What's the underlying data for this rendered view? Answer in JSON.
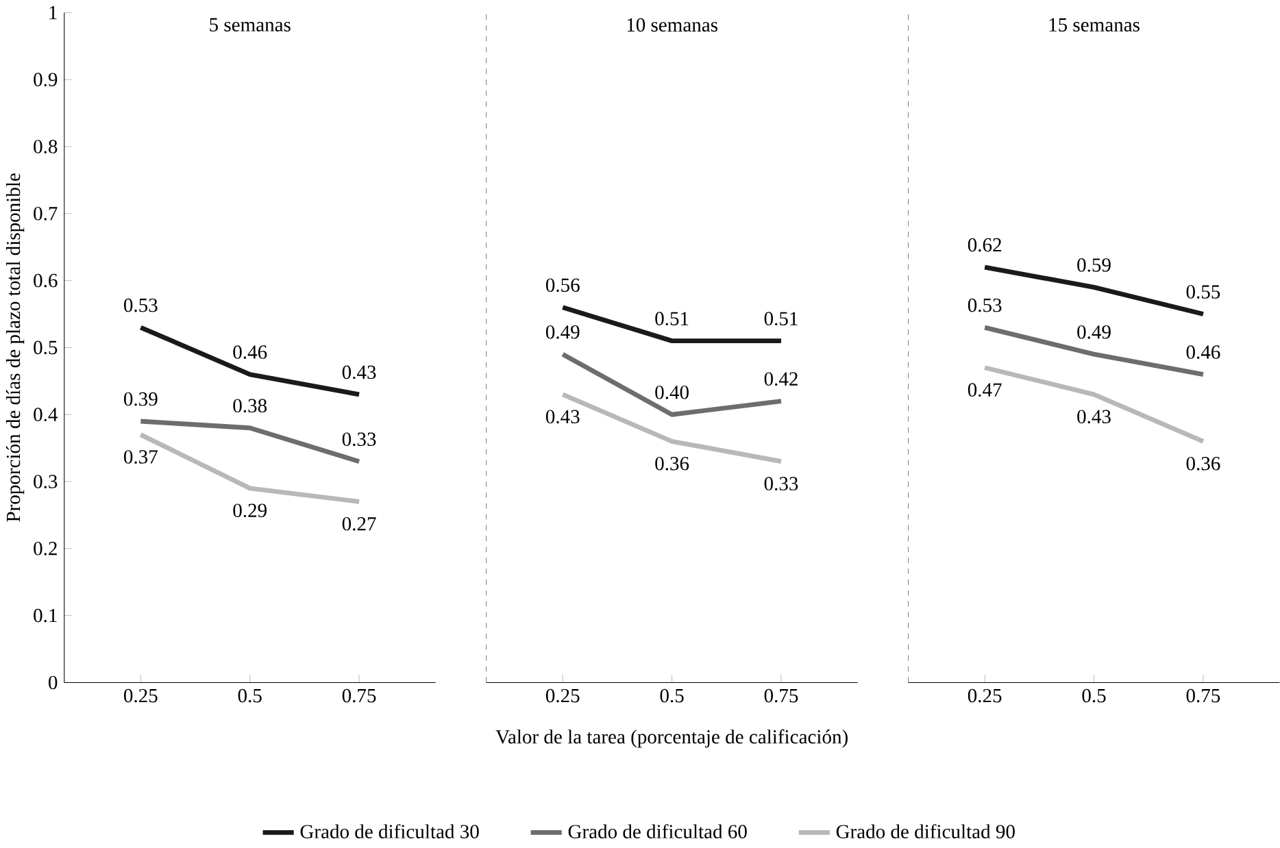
{
  "chart_data": [
    {
      "type": "line",
      "title": "5 semanas",
      "ylabel": "Proporción de días de plazo total disponible",
      "categories": [
        "0.25",
        "0.5",
        "0.75"
      ],
      "ylim": [
        0,
        1
      ],
      "yticks": [
        0,
        0.1,
        0.2,
        0.3,
        0.4,
        0.5,
        0.6,
        0.7,
        0.8,
        0.9,
        1
      ],
      "legend": "bottom",
      "grid": false,
      "series": [
        {
          "name": "Grado de dificultad 30",
          "color": "#1a1a1a",
          "values": [
            0.53,
            0.46,
            0.43
          ],
          "value_labels": [
            "0.53",
            "0.46",
            "0.43"
          ]
        },
        {
          "name": "Grado de dificultad 60",
          "color": "#6d6d6d",
          "values": [
            0.39,
            0.38,
            0.33
          ],
          "value_labels": [
            "0.39",
            "0.38",
            "0.33"
          ]
        },
        {
          "name": "Grado de dificultad 90",
          "color": "#b8b8b8",
          "values": [
            0.37,
            0.29,
            0.27
          ],
          "value_labels": [
            "0.37",
            "0.29",
            "0.27"
          ]
        }
      ]
    },
    {
      "type": "line",
      "title": "10 semanas",
      "xlabel": "Valor de la tarea (porcentaje de calificación)",
      "categories": [
        "0.25",
        "0.5",
        "0.75"
      ],
      "ylim": [
        0,
        1
      ],
      "tick_labels": "x",
      "grid": false,
      "series": [
        {
          "color": "#1a1a1a",
          "values": [
            0.56,
            0.51,
            0.51
          ],
          "value_labels": [
            "0.56",
            "0.51",
            "0.51"
          ]
        },
        {
          "color": "#6d6d6d",
          "values": [
            0.49,
            0.4,
            0.42
          ],
          "value_labels": [
            "0.49",
            "0.40",
            "0.42"
          ]
        },
        {
          "color": "#b8b8b8",
          "values": [
            0.43,
            0.36,
            0.33
          ],
          "value_labels": [
            "0.43",
            "0.36",
            "0.33"
          ]
        }
      ]
    },
    {
      "type": "line",
      "title": "15 semanas",
      "categories": [
        "0.25",
        "0.5",
        "0.75"
      ],
      "ylim": [
        0,
        1
      ],
      "tick_labels": "x",
      "grid": false,
      "series": [
        {
          "color": "#1a1a1a",
          "values": [
            0.62,
            0.59,
            0.55
          ],
          "value_labels": [
            "0.62",
            "0.59",
            "0.55"
          ]
        },
        {
          "color": "#6d6d6d",
          "values": [
            0.53,
            0.49,
            0.46
          ],
          "value_labels": [
            "0.53",
            "0.49",
            "0.46"
          ]
        },
        {
          "color": "#b8b8b8",
          "values": [
            0.47,
            0.43,
            0.36
          ],
          "value_labels": [
            "0.47",
            "0.43",
            "0.36"
          ]
        }
      ]
    }
  ]
}
